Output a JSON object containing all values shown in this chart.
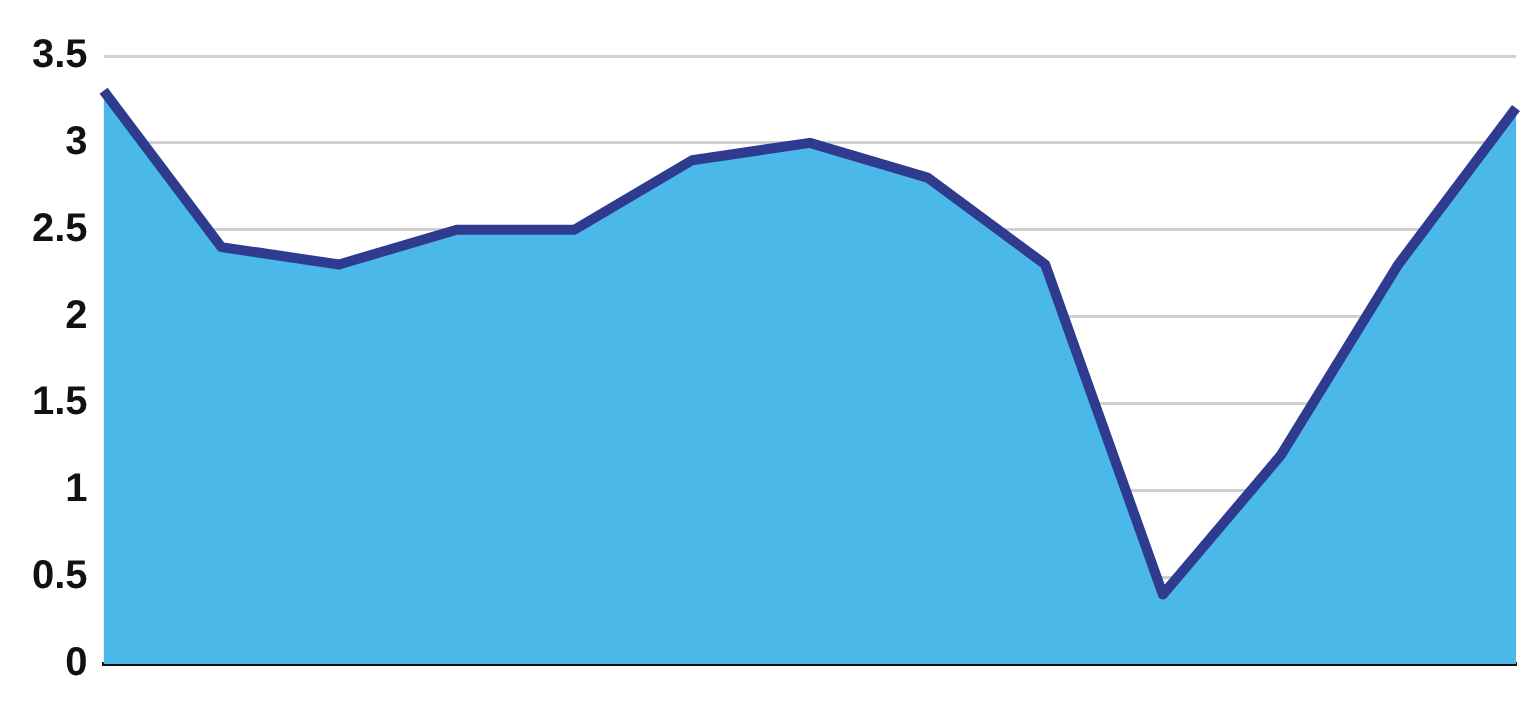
{
  "chart_data": {
    "type": "area",
    "categories": [
      null,
      null,
      null,
      null,
      null,
      null,
      null,
      null,
      null,
      null,
      null,
      null,
      null
    ],
    "series": [
      {
        "color": "#2e3b8f",
        "values": [
          3.3,
          2.4,
          2.3,
          2.5,
          2.5,
          2.9,
          3.0,
          2.8,
          2.3,
          0.4,
          1.2,
          2.3,
          3.2
        ]
      }
    ],
    "ylim": [
      0,
      3.5
    ],
    "yticks": [
      0,
      0.5,
      1,
      1.5,
      2,
      2.5,
      3,
      3.5
    ],
    "grid": "y",
    "tick_labels": "y",
    "legend": false,
    "marker": "none",
    "line_style": "solid"
  }
}
